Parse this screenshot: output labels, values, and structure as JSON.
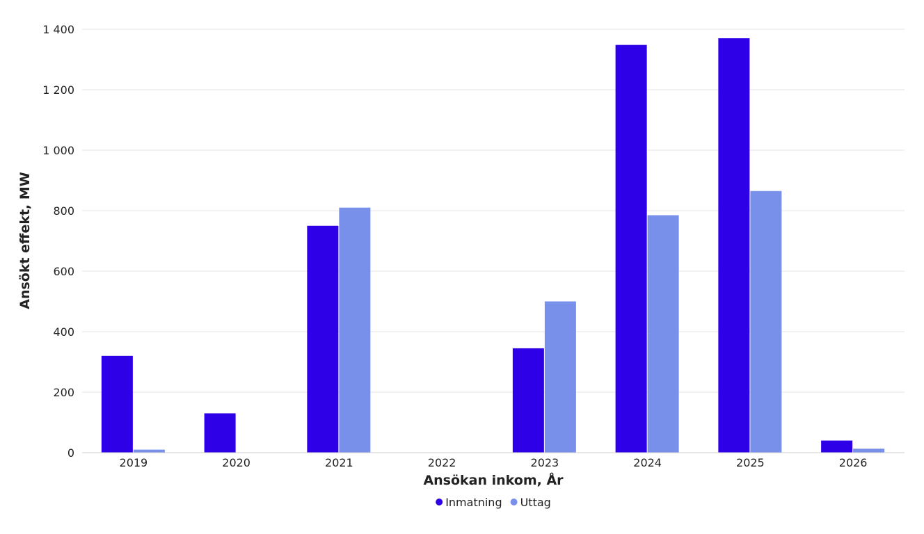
{
  "chart_data": {
    "type": "bar",
    "categories": [
      "2019",
      "2020",
      "2021",
      "2022",
      "2023",
      "2024",
      "2025",
      "2026"
    ],
    "series": [
      {
        "name": "Inmatning",
        "color": "#2e00e8",
        "values": [
          320,
          130,
          750,
          0,
          345,
          1348,
          1370,
          40
        ]
      },
      {
        "name": "Uttag",
        "color": "#7890ea",
        "values": [
          10,
          0,
          810,
          0,
          500,
          785,
          865,
          13
        ]
      }
    ],
    "xlabel": "Ansökan inkom, År",
    "ylabel": "Ansökt effekt, MW",
    "ylim": [
      0,
      1400
    ],
    "yticks": [
      0,
      200,
      400,
      600,
      800,
      1000,
      1200,
      1400
    ],
    "ytick_labels": [
      "0",
      "200",
      "400",
      "600",
      "800",
      "1 000",
      "1 200",
      "1 400"
    ],
    "grid": true,
    "legend_position": "bottom-center"
  }
}
